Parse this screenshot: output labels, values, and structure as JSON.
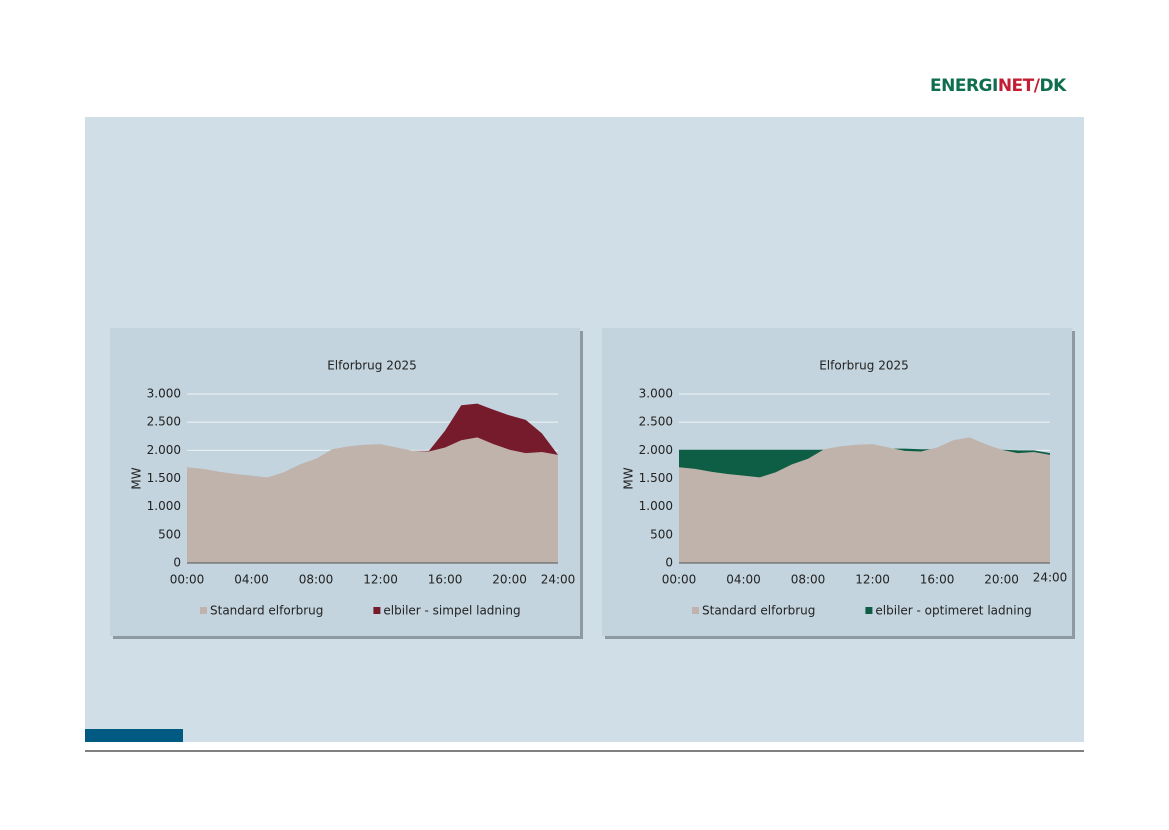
{
  "logo": [
    "ENERGI",
    "NET",
    "/",
    "DK"
  ],
  "chart_data": [
    {
      "type": "area",
      "title": "Elforbrug 2025",
      "y_label": "MW",
      "categories": [
        "00:00",
        null,
        null,
        null,
        "04:00",
        null,
        null,
        null,
        "08:00",
        null,
        null,
        null,
        "12:00",
        null,
        null,
        null,
        "16:00",
        null,
        null,
        null,
        "20:00",
        null,
        null,
        "24:00"
      ],
      "ylim": [
        0,
        3000
      ],
      "yticks": [
        0,
        500,
        {
          "value": 1000,
          "label": "1.000"
        },
        {
          "value": 1500,
          "label": "1.500"
        },
        {
          "value": 2000,
          "label": "2.000"
        },
        {
          "value": 2500,
          "label": "2.500"
        },
        {
          "value": 3000,
          "label": "3.000"
        }
      ],
      "grid": true,
      "series": [
        {
          "name": "Standard elforbrug",
          "color": "#bfb3ab",
          "values": [
            1700,
            1670,
            1620,
            1580,
            1550,
            1520,
            1610,
            1750,
            1850,
            2020,
            2070,
            2100,
            2110,
            2050,
            1990,
            1980,
            2050,
            2180,
            2230,
            2110,
            2010,
            1950,
            1970,
            1920
          ]
        },
        {
          "name": "elbiler - simpel ladning",
          "color": "#761b2c",
          "values": [
            null,
            null,
            null,
            null,
            null,
            null,
            null,
            null,
            null,
            null,
            null,
            null,
            null,
            null,
            1990,
            1990,
            2350,
            2800,
            2830,
            2720,
            2620,
            2540,
            2300,
            1920
          ]
        }
      ]
    },
    {
      "type": "area",
      "title": "Elforbrug 2025",
      "y_label": "MW",
      "categories": [
        "00:00",
        null,
        null,
        null,
        "04:00",
        null,
        null,
        null,
        "08:00",
        null,
        null,
        null,
        "12:00",
        null,
        null,
        null,
        "16:00",
        null,
        null,
        null,
        "20:00",
        null,
        null,
        "24:00"
      ],
      "ylim": [
        0,
        3000
      ],
      "yticks": [
        0,
        500,
        {
          "value": 1000,
          "label": "1.000"
        },
        {
          "value": 1500,
          "label": "1.500"
        },
        {
          "value": 2000,
          "label": "2.000"
        },
        {
          "value": 2500,
          "label": "2.500"
        },
        {
          "value": 3000,
          "label": "3.000"
        }
      ],
      "grid": true,
      "series": [
        {
          "name": "Standard elforbrug",
          "color": "#bfb3ab",
          "values": [
            1700,
            1670,
            1620,
            1580,
            1550,
            1520,
            1610,
            1750,
            1850,
            2020,
            2070,
            2100,
            2110,
            2050,
            1990,
            1980,
            2050,
            2180,
            2230,
            2110,
            2010,
            1950,
            1970,
            1920
          ]
        },
        {
          "name": "elbiler - optimeret ladning",
          "color": "#0e5e45",
          "values": [
            2010,
            2010,
            2010,
            2010,
            2010,
            2010,
            2010,
            2010,
            2010,
            2010,
            2010,
            2010,
            2020,
            2030,
            2030,
            2020,
            2020,
            2010,
            2010,
            2010,
            2010,
            2000,
            2000,
            1950
          ]
        }
      ]
    }
  ]
}
